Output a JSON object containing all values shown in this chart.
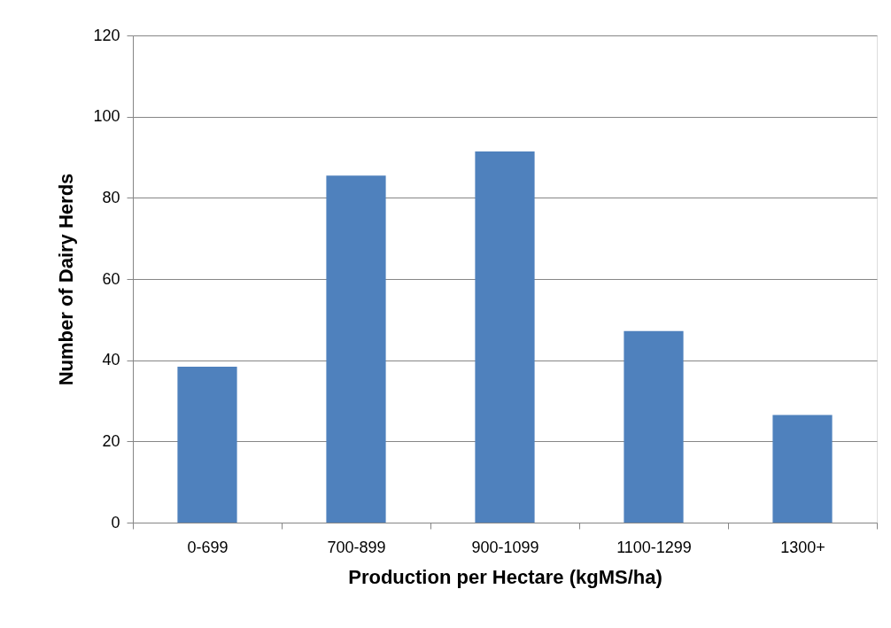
{
  "chart_data": {
    "type": "bar",
    "xlabel": "Production per Hectare (kgMS/ha)",
    "ylabel": "Number of Dairy Herds",
    "categories": [
      "0-699",
      "700-899",
      "900-1099",
      "1100-1299",
      "1300+"
    ],
    "series": [
      {
        "color": "#4f81bd",
        "values": [
          38.4,
          85.5,
          91.4,
          47.2,
          26.5
        ]
      }
    ],
    "ylim": [
      0,
      120
    ],
    "yticks": [
      0,
      20,
      40,
      60,
      80,
      100,
      120
    ],
    "grid": "y"
  }
}
